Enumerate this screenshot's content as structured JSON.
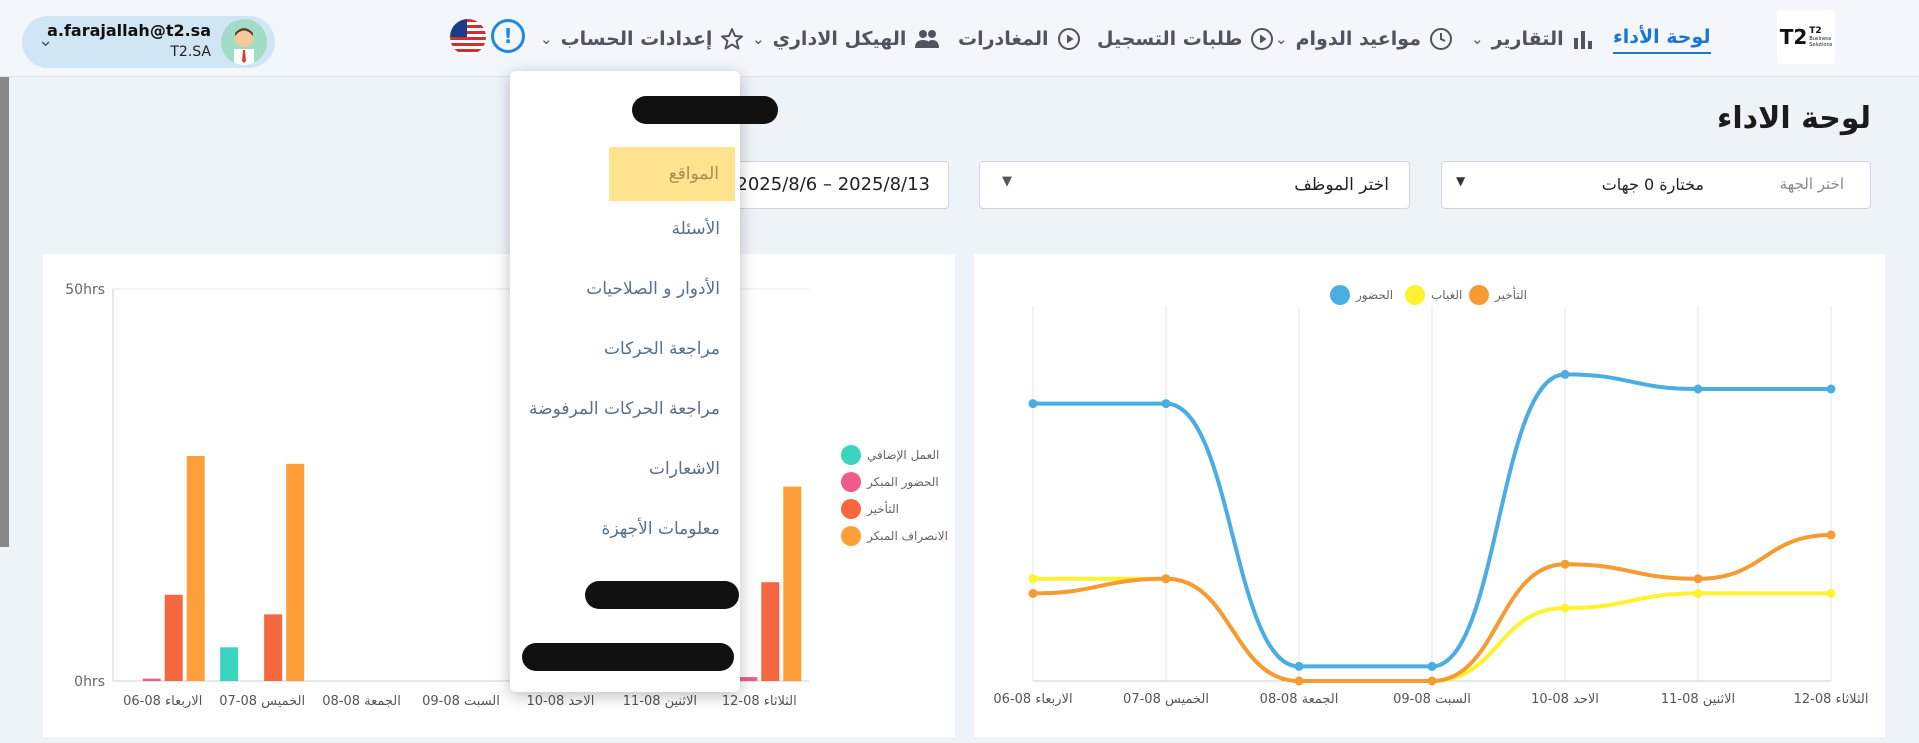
{
  "header": {
    "user": {
      "email": "a.farajallah@t2.sa",
      "org": "T2.SA"
    },
    "alert_symbol": "!",
    "nav": [
      {
        "label": "لوحة الأداء",
        "icon": "none",
        "active": true
      },
      {
        "label": "التقارير",
        "icon": "bar-chart-icon",
        "caret": true
      },
      {
        "label": "مواعيد الدوام",
        "icon": "clock-icon",
        "caret": true
      },
      {
        "label": "طلبات التسجيل",
        "icon": "play-circle-icon"
      },
      {
        "label": "المغادرات",
        "icon": "play-circle-icon"
      },
      {
        "label": "الهيكل الاداري",
        "icon": "people-icon",
        "caret": true
      },
      {
        "label": "إعدادات الحساب",
        "icon": "star-icon",
        "caret": true
      }
    ],
    "logo": {
      "mark": "T2",
      "line1": "T2",
      "line2": "Business",
      "line3": "Solutions"
    }
  },
  "page": {
    "title": "لوحة الاداء",
    "filters": {
      "dept_label": "اختر الجهة",
      "dept_value": "مختارة 0 جهات",
      "employee_placeholder": "اختر الموظف",
      "date_range": "2025/8/6 – 2025/8/13"
    }
  },
  "menu": {
    "items": [
      "المواقع",
      "الأسئلة",
      "الأدوار و الصلاحيات",
      "مراجعة الحركات",
      "مراجعة الحركات المرفوضة",
      "الاشعارات",
      "معلومات الأجهزة"
    ],
    "highlighted_index": 0
  },
  "colors": {
    "accent": "#1976d2",
    "attendance": "#4aaee3",
    "absence": "#fff22e",
    "late": "#f59b33",
    "overtime": "#3bd5bf",
    "early_attendance": "#f05b8c",
    "late_red": "#f4673f",
    "early_leave": "#ff9f3a"
  },
  "chart_data": [
    {
      "type": "bar",
      "categories": [
        "الاربعاء 08-06",
        "الخميس 08-07",
        "الجمعة 08-08",
        "السبت 08-09",
        "الاحد 08-10",
        "الاثنين 08-11",
        "الثلاثاء 08-12"
      ],
      "series": [
        {
          "name": "العمل الإضافي",
          "values": [
            0,
            4.3,
            0,
            0,
            0,
            0,
            0
          ]
        },
        {
          "name": "الحضور المبكر",
          "values": [
            0.3,
            0,
            0,
            0,
            0,
            0,
            0.5
          ]
        },
        {
          "name": "التأخير",
          "values": [
            11,
            8.5,
            0,
            0,
            0,
            0,
            12.6
          ]
        },
        {
          "name": "الانصراف المبكر",
          "values": [
            28.7,
            27.7,
            0,
            0,
            0,
            0,
            24.8
          ]
        }
      ],
      "y_ticks": [
        "0hrs",
        "50hrs"
      ],
      "ylim": [
        0,
        50
      ],
      "legend": "right"
    },
    {
      "type": "line",
      "categories": [
        "الاربعاء 08-06",
        "الخميس 08-07",
        "الجمعة 08-08",
        "السبت 08-09",
        "الاحد 08-10",
        "الاثنين 08-11",
        "الثلاثاء 08-12"
      ],
      "series": [
        {
          "name": "الحضور",
          "values": [
            19,
            19,
            1,
            1,
            21,
            20,
            20
          ]
        },
        {
          "name": "الغياب",
          "values": [
            7,
            7,
            0,
            0,
            5,
            6,
            6
          ]
        },
        {
          "name": "التأخير",
          "values": [
            6,
            7,
            0,
            0,
            8,
            7,
            10
          ]
        }
      ],
      "ylim": [
        0,
        25
      ],
      "legend": "top",
      "grid": true
    }
  ]
}
